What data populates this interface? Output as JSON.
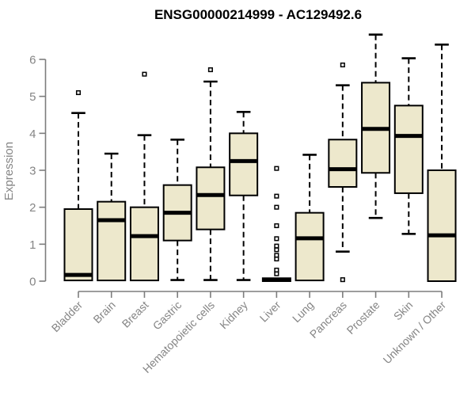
{
  "chart_data": {
    "type": "boxplot",
    "title": "ENSG00000214999 - AC129492.6",
    "ylabel": "Expression",
    "xlabel": "",
    "ylim": [
      0,
      6
    ],
    "yticks": [
      0,
      1,
      2,
      3,
      4,
      5,
      6
    ],
    "grid": false,
    "legend": "none",
    "box_fill_color": "#EDE8CC",
    "box_stroke_color": "#000000",
    "axis_color": "#7d7d7d",
    "label_color": "#858585",
    "categories": [
      "Bladder",
      "Brain",
      "Breast",
      "Gastric",
      "Hematopoietic cells",
      "Kidney",
      "Liver",
      "Lung",
      "Pancreas",
      "Prostate",
      "Skin",
      "Unknown / Other"
    ],
    "series": [
      {
        "name": "Bladder",
        "whisker_low": 0.02,
        "q1": 0.02,
        "median": 0.17,
        "q3": 1.95,
        "whisker_high": 4.55,
        "outliers": [
          5.1
        ]
      },
      {
        "name": "Brain",
        "whisker_low": 0.02,
        "q1": 0.02,
        "median": 1.65,
        "q3": 2.15,
        "whisker_high": 3.45,
        "outliers": []
      },
      {
        "name": "Breast",
        "whisker_low": 0.02,
        "q1": 0.02,
        "median": 1.22,
        "q3": 2.0,
        "whisker_high": 3.95,
        "outliers": [
          5.6
        ]
      },
      {
        "name": "Gastric",
        "whisker_low": 0.03,
        "q1": 1.1,
        "median": 1.85,
        "q3": 2.6,
        "whisker_high": 3.83,
        "outliers": []
      },
      {
        "name": "Hematopoietic cells",
        "whisker_low": 0.03,
        "q1": 1.4,
        "median": 2.33,
        "q3": 3.08,
        "whisker_high": 5.4,
        "outliers": [
          5.72
        ]
      },
      {
        "name": "Kidney",
        "whisker_low": 0.03,
        "q1": 2.32,
        "median": 3.25,
        "q3": 4.0,
        "whisker_high": 4.58,
        "outliers": []
      },
      {
        "name": "Liver",
        "whisker_low": 0.0,
        "q1": 0.0,
        "median": 0.04,
        "q3": 0.08,
        "whisker_high": 0.08,
        "outliers": [
          3.05,
          2.3,
          2.0,
          1.5,
          1.15,
          0.95,
          0.85,
          0.7,
          0.6,
          0.3,
          0.2
        ]
      },
      {
        "name": "Lung",
        "whisker_low": 0.02,
        "q1": 0.02,
        "median": 1.16,
        "q3": 1.85,
        "whisker_high": 3.42,
        "outliers": []
      },
      {
        "name": "Pancreas",
        "whisker_low": 0.8,
        "q1": 2.55,
        "median": 3.03,
        "q3": 3.83,
        "whisker_high": 5.3,
        "outliers": [
          5.85,
          0.04
        ]
      },
      {
        "name": "Prostate",
        "whisker_low": 1.71,
        "q1": 2.93,
        "median": 4.12,
        "q3": 5.37,
        "whisker_high": 6.67,
        "outliers": []
      },
      {
        "name": "Skin",
        "whisker_low": 1.28,
        "q1": 2.38,
        "median": 3.93,
        "q3": 4.75,
        "whisker_high": 6.03,
        "outliers": []
      },
      {
        "name": "Unknown / Other",
        "whisker_low": 0.0,
        "q1": 0.0,
        "median": 1.24,
        "q3": 3.0,
        "whisker_high": 6.4,
        "outliers": []
      }
    ]
  }
}
